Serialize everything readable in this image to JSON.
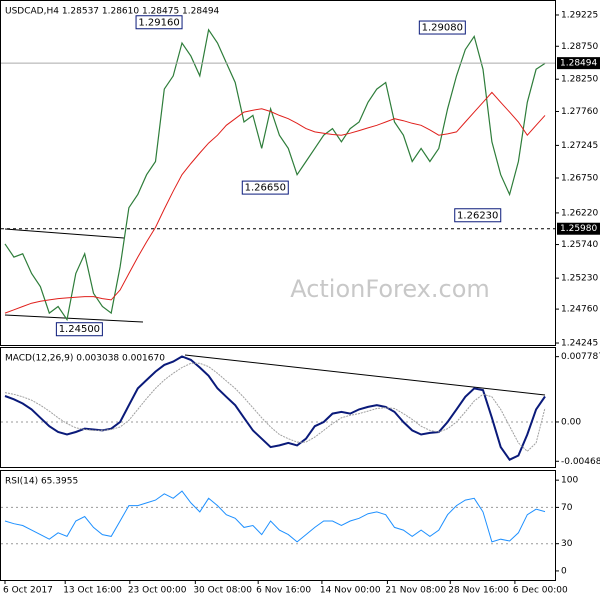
{
  "chart_data": [
    {
      "type": "line",
      "title": "USDCAD,H4 1.28537 1.28610 1.28475 1.28494",
      "watermark": "ActionForex.com",
      "xlim": [
        0,
        61
      ],
      "ylim": [
        1.24215,
        1.29422
      ],
      "yticks": [
        1.29225,
        {
          "value": 1.2875,
          "label": "1.28750"
        },
        {
          "value": 1.2825,
          "label": "1.28250"
        },
        {
          "value": 1.2776,
          "label": "1.27760"
        },
        1.27245,
        {
          "value": 1.2675,
          "label": "1.26750"
        },
        {
          "value": 1.2622,
          "label": "1.26220"
        },
        {
          "value": 1.2574,
          "label": "1.25740"
        },
        {
          "value": 1.2523,
          "label": "1.25230"
        },
        {
          "value": 1.2476,
          "label": "1.24760"
        },
        1.24245
      ],
      "series": [
        {
          "name": "Close",
          "color": "#2e7d3a",
          "values": [
            1.2575,
            1.2555,
            1.256,
            1.253,
            1.251,
            1.247,
            1.248,
            1.246,
            1.253,
            1.256,
            1.25,
            1.248,
            1.247,
            1.254,
            1.263,
            1.265,
            1.268,
            1.27,
            1.281,
            1.283,
            1.288,
            1.286,
            1.283,
            1.29,
            1.288,
            1.285,
            1.282,
            1.276,
            1.277,
            1.272,
            1.278,
            1.274,
            1.272,
            1.268,
            1.27,
            1.272,
            1.274,
            1.275,
            1.273,
            1.275,
            1.276,
            1.279,
            1.281,
            1.282,
            1.276,
            1.274,
            1.27,
            1.272,
            1.27,
            1.272,
            1.278,
            1.283,
            1.287,
            1.289,
            1.284,
            1.273,
            1.268,
            1.265,
            1.27,
            1.279,
            1.284,
            1.2849
          ]
        },
        {
          "name": "MA",
          "color": "#e0201c",
          "values": [
            1.247,
            1.2475,
            1.248,
            1.2485,
            1.2488,
            1.249,
            1.2492,
            1.2493,
            1.2494,
            1.2495,
            1.2495,
            1.2492,
            1.249,
            1.2505,
            1.253,
            1.2555,
            1.2578,
            1.26,
            1.2628,
            1.2655,
            1.268,
            1.2697,
            1.2713,
            1.2728,
            1.274,
            1.2755,
            1.2765,
            1.2775,
            1.2778,
            1.278,
            1.2776,
            1.277,
            1.2765,
            1.2758,
            1.275,
            1.2745,
            1.2743,
            1.2741,
            1.274,
            1.2743,
            1.2747,
            1.2751,
            1.2755,
            1.276,
            1.2765,
            1.2762,
            1.2758,
            1.2755,
            1.2748,
            1.274,
            1.2742,
            1.2745,
            1.276,
            1.2775,
            1.279,
            1.2805,
            1.279,
            1.2775,
            1.276,
            1.274,
            1.2755,
            1.277
          ]
        }
      ],
      "price_labels": [
        {
          "value": 1.28494,
          "label": "1.28494",
          "color": "#000000"
        },
        {
          "value": 1.2598,
          "label": "1.25980",
          "color": "#000000"
        }
      ],
      "levels": [
        1.2598
      ],
      "annotations": [
        {
          "x": 20,
          "value": 1.2916,
          "label": "1.29160"
        },
        {
          "x": 32,
          "value": 1.2665,
          "label": "1.26650"
        },
        {
          "x": 11,
          "value": 1.245,
          "label": "1.24500"
        },
        {
          "x": 56,
          "value": 1.2623,
          "label": "1.26230"
        },
        {
          "x": 52,
          "value": 1.2908,
          "label": "1.29080"
        }
      ]
    },
    {
      "type": "line",
      "title": "MACD(12,26,9) 0.003038 0.001670",
      "xlim": [
        0,
        61
      ],
      "ylim": [
        -0.00537,
        0.0087
      ],
      "yticks": [
        0.007787,
        {
          "value": 0,
          "label": "0.00"
        },
        -0.004688
      ],
      "levels": [
        0
      ],
      "series": [
        {
          "name": "MACD",
          "color": "#0a1a7a",
          "values": [
            0.0031,
            0.0027,
            0.0022,
            0.0015,
            0.0005,
            -0.0005,
            -0.0012,
            -0.0015,
            -0.0012,
            -0.0008,
            -0.0009,
            -0.001,
            -0.0008,
            0.0,
            0.002,
            0.004,
            0.005,
            0.006,
            0.0068,
            0.0072,
            0.0078,
            0.0074,
            0.0065,
            0.0055,
            0.004,
            0.003,
            0.002,
            0.0005,
            -0.001,
            -0.002,
            -0.003,
            -0.0028,
            -0.0025,
            -0.0028,
            -0.002,
            -0.0005,
            0.0,
            0.001,
            0.0012,
            0.001,
            0.0015,
            0.0018,
            0.002,
            0.0018,
            0.0012,
            0.0,
            -0.001,
            -0.0015,
            -0.0013,
            -0.0012,
            0.0,
            0.0015,
            0.003,
            0.004,
            0.0038,
            0.0005,
            -0.003,
            -0.0045,
            -0.004,
            -0.0015,
            0.0015,
            0.003038
          ]
        },
        {
          "name": "Signal",
          "color": "#a0a0a0",
          "values": [
            0.0035,
            0.0033,
            0.003,
            0.0026,
            0.002,
            0.0013,
            0.0005,
            -0.0002,
            -0.0007,
            -0.0009,
            -0.001,
            -0.001,
            -0.0009,
            -0.0006,
            0.0002,
            0.0015,
            0.0028,
            0.004,
            0.005,
            0.0058,
            0.0065,
            0.007,
            0.007,
            0.0066,
            0.0058,
            0.0049,
            0.004,
            0.0029,
            0.0017,
            0.0005,
            -0.0006,
            -0.0015,
            -0.002,
            -0.0024,
            -0.0024,
            -0.0018,
            -0.001,
            -0.0002,
            0.0005,
            0.0008,
            0.001,
            0.0013,
            0.0016,
            0.0017,
            0.0016,
            0.001,
            0.0003,
            -0.0005,
            -0.001,
            -0.0012,
            -0.0008,
            0.0,
            0.0012,
            0.0025,
            0.0033,
            0.003,
            0.0015,
            -0.0005,
            -0.0025,
            -0.0035,
            -0.0025,
            0.00167
          ]
        }
      ]
    },
    {
      "type": "line",
      "title": "RSI(14) 65.3955",
      "xlim": [
        0,
        61
      ],
      "ylim": [
        -10,
        109
      ],
      "yticks": [
        100,
        70,
        30,
        0
      ],
      "levels": [
        70,
        30
      ],
      "xticks": [
        {
          "value": 0,
          "label": "6 Oct 2017"
        },
        {
          "value": 6.8,
          "label": "13 Oct 16:00"
        },
        {
          "value": 14.1,
          "label": "23 Oct 00:00"
        },
        {
          "value": 21.5,
          "label": "30 Oct 08:00"
        },
        {
          "value": 28.6,
          "label": "6 Nov 16:00"
        },
        {
          "value": 35.8,
          "label": "14 Nov 00:00"
        },
        {
          "value": 43.2,
          "label": "21 Nov 08:00"
        },
        {
          "value": 50.3,
          "label": "28 Nov 16:00"
        },
        {
          "value": 57.6,
          "label": "6 Dec 00:00"
        }
      ],
      "series": [
        {
          "name": "RSI",
          "color": "#1e90ff",
          "values": [
            55,
            52,
            50,
            45,
            40,
            35,
            42,
            38,
            55,
            60,
            48,
            40,
            38,
            55,
            72,
            72,
            75,
            78,
            85,
            80,
            88,
            75,
            65,
            80,
            72,
            62,
            58,
            48,
            50,
            40,
            55,
            45,
            40,
            32,
            40,
            48,
            55,
            55,
            50,
            55,
            58,
            63,
            65,
            62,
            48,
            45,
            38,
            45,
            38,
            45,
            62,
            72,
            78,
            80,
            65,
            32,
            35,
            33,
            42,
            62,
            68,
            65.3955
          ]
        }
      ]
    }
  ]
}
